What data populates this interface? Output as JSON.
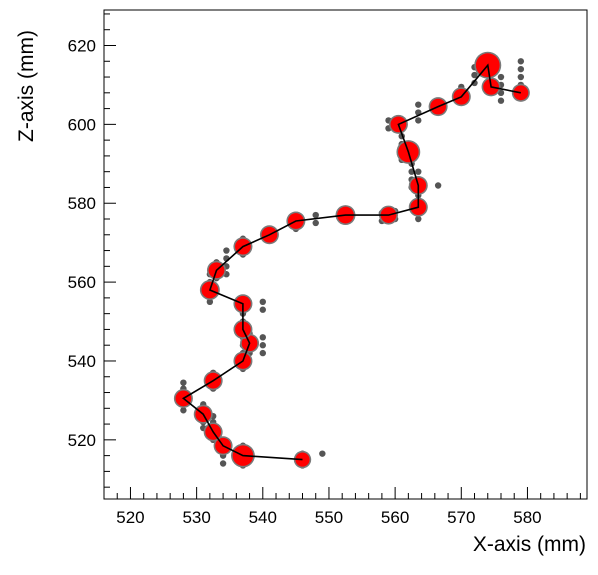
{
  "chart_data": {
    "type": "scatter",
    "title": "",
    "xlabel": "X-axis (mm)",
    "ylabel": "Z-axis (mm)",
    "xlim": [
      516,
      589
    ],
    "ylim": [
      505,
      629
    ],
    "x_ticks": [
      520,
      530,
      540,
      550,
      560,
      570,
      580
    ],
    "y_ticks": [
      520,
      540,
      560,
      580,
      600,
      620
    ],
    "grid": false,
    "series": [
      {
        "role": "hits",
        "color": "#555555",
        "points": [
          [
            546,
            513.5
          ],
          [
            546,
            515
          ],
          [
            546,
            516.5
          ],
          [
            549,
            516.5
          ],
          [
            537,
            513.5
          ],
          [
            537,
            515
          ],
          [
            537,
            517
          ],
          [
            537,
            518.5
          ],
          [
            534,
            514
          ],
          [
            534,
            516
          ],
          [
            534,
            518
          ],
          [
            534,
            520
          ],
          [
            532.5,
            520
          ],
          [
            532.5,
            521.5
          ],
          [
            532.5,
            523
          ],
          [
            532.5,
            524.5
          ],
          [
            532.5,
            526
          ],
          [
            531,
            523
          ],
          [
            531,
            524.5
          ],
          [
            531,
            526
          ],
          [
            531,
            527.5
          ],
          [
            531,
            529
          ],
          [
            528,
            527.5
          ],
          [
            528,
            529
          ],
          [
            528,
            531
          ],
          [
            528,
            533
          ],
          [
            528,
            534.5
          ],
          [
            532.5,
            533
          ],
          [
            532.5,
            535
          ],
          [
            532.5,
            537
          ],
          [
            537,
            538
          ],
          [
            537,
            540
          ],
          [
            537,
            542
          ],
          [
            537,
            544
          ],
          [
            537,
            546
          ],
          [
            538,
            542
          ],
          [
            538,
            544.5
          ],
          [
            538,
            547
          ],
          [
            540,
            542
          ],
          [
            540,
            544
          ],
          [
            540,
            546
          ],
          [
            537,
            546
          ],
          [
            537,
            548
          ],
          [
            537,
            550
          ],
          [
            537,
            552
          ],
          [
            537,
            554
          ],
          [
            537,
            556
          ],
          [
            540,
            553
          ],
          [
            540,
            555
          ],
          [
            532,
            555
          ],
          [
            532,
            557
          ],
          [
            532,
            558.5
          ],
          [
            532,
            560
          ],
          [
            532,
            562
          ],
          [
            533,
            561
          ],
          [
            533,
            563
          ],
          [
            533,
            565
          ],
          [
            534.5,
            562
          ],
          [
            534.5,
            564
          ],
          [
            534.5,
            566
          ],
          [
            534.5,
            568
          ],
          [
            537,
            567
          ],
          [
            537,
            569
          ],
          [
            537,
            571
          ],
          [
            541,
            571
          ],
          [
            541,
            573
          ],
          [
            545,
            573.5
          ],
          [
            545,
            575
          ],
          [
            545,
            576.5
          ],
          [
            548,
            575
          ],
          [
            548,
            577
          ],
          [
            552,
            575.5
          ],
          [
            552,
            577.5
          ],
          [
            558,
            575.5
          ],
          [
            558,
            577.5
          ],
          [
            560,
            576
          ],
          [
            560,
            578
          ],
          [
            563.5,
            576
          ],
          [
            563.5,
            578
          ],
          [
            563.5,
            580
          ],
          [
            563.5,
            582
          ],
          [
            563.5,
            584
          ],
          [
            563.5,
            586
          ],
          [
            563.5,
            588
          ],
          [
            562.5,
            584
          ],
          [
            562.5,
            586
          ],
          [
            562.5,
            588
          ],
          [
            562.5,
            590
          ],
          [
            561,
            591
          ],
          [
            561,
            593
          ],
          [
            561,
            595
          ],
          [
            561,
            597
          ],
          [
            561,
            599
          ],
          [
            566.5,
            584.5
          ],
          [
            559,
            599
          ],
          [
            559,
            601
          ],
          [
            563.5,
            601
          ],
          [
            563.5,
            603
          ],
          [
            563.5,
            605
          ],
          [
            566.5,
            603
          ],
          [
            566.5,
            605.5
          ],
          [
            570,
            605.5
          ],
          [
            570,
            607.5
          ],
          [
            570,
            609.5
          ],
          [
            572,
            610.5
          ],
          [
            572,
            612.5
          ],
          [
            572,
            614.5
          ],
          [
            576,
            606
          ],
          [
            576,
            608
          ],
          [
            576,
            610
          ],
          [
            576,
            612
          ],
          [
            579,
            608
          ],
          [
            579,
            610
          ],
          [
            579,
            612
          ],
          [
            579,
            614
          ],
          [
            579,
            616
          ]
        ]
      },
      {
        "role": "clusters",
        "color": "#ff0000",
        "points": [
          [
            546,
            515,
            1
          ],
          [
            537,
            516,
            3
          ],
          [
            534,
            518.5,
            1.5
          ],
          [
            532.5,
            522,
            1.5
          ],
          [
            531,
            526.5,
            1.5
          ],
          [
            528,
            530.5,
            1.5
          ],
          [
            532.5,
            535,
            1.5
          ],
          [
            537,
            540,
            1.5
          ],
          [
            538,
            544.5,
            1.5
          ],
          [
            537,
            548,
            1.5
          ],
          [
            537,
            554.5,
            1.5
          ],
          [
            532,
            558,
            1.8
          ],
          [
            533,
            563,
            1.5
          ],
          [
            537,
            569,
            1.5
          ],
          [
            541,
            572,
            1.5
          ],
          [
            545,
            575.5,
            1.5
          ],
          [
            552.5,
            577,
            1.8
          ],
          [
            559,
            577,
            1.5
          ],
          [
            563.5,
            579,
            1.5
          ],
          [
            563.5,
            584.5,
            1.5
          ],
          [
            562,
            593,
            3
          ],
          [
            560.5,
            600,
            1.5
          ],
          [
            566.5,
            604.5,
            1.5
          ],
          [
            570,
            607,
            1.5
          ],
          [
            574,
            615,
            4
          ],
          [
            574.5,
            609.5,
            1.5
          ],
          [
            579,
            608,
            1.2
          ]
        ]
      },
      {
        "role": "track",
        "color": "#000000",
        "points": [
          [
            546,
            515
          ],
          [
            537,
            516
          ],
          [
            534,
            518.5
          ],
          [
            532.5,
            522
          ],
          [
            531,
            526.5
          ],
          [
            528,
            530.5
          ],
          [
            532.5,
            535
          ],
          [
            537,
            540
          ],
          [
            538,
            544.5
          ],
          [
            537,
            548
          ],
          [
            537,
            554.5
          ],
          [
            532,
            558
          ],
          [
            533,
            563
          ],
          [
            537,
            569
          ],
          [
            541,
            572
          ],
          [
            545,
            575.5
          ],
          [
            552.5,
            577
          ],
          [
            559,
            577
          ],
          [
            563.5,
            579
          ],
          [
            563.5,
            584.5
          ],
          [
            562,
            593
          ],
          [
            560.5,
            600
          ],
          [
            566.5,
            604.5
          ],
          [
            570,
            607
          ],
          [
            574,
            615
          ],
          [
            574.5,
            609.5
          ],
          [
            579,
            608
          ]
        ]
      }
    ]
  }
}
